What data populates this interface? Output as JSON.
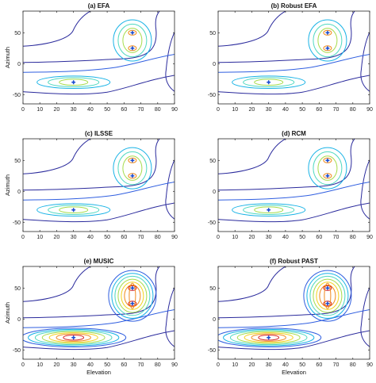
{
  "chart_data": [
    {
      "type": "contour",
      "title": "(a) EFA",
      "xlabel": "",
      "ylabel": "Azimuth",
      "xlim": [
        0,
        90
      ],
      "ylim": [
        -90,
        90
      ],
      "xticks": [
        0,
        10,
        20,
        30,
        40,
        50,
        60,
        70,
        80,
        90
      ],
      "yticks": [
        -50,
        0,
        50
      ],
      "peaks": [
        {
          "elevation": 30,
          "azimuth": -30
        },
        {
          "elevation": 65,
          "azimuth": 50
        },
        {
          "elevation": 65,
          "azimuth": 25
        }
      ],
      "contour_levels": 4
    },
    {
      "type": "contour",
      "title": "(b) Robust EFA",
      "xlabel": "",
      "ylabel": "",
      "xlim": [
        0,
        90
      ],
      "ylim": [
        -90,
        90
      ],
      "xticks": [
        0,
        10,
        20,
        30,
        40,
        50,
        60,
        70,
        80,
        90
      ],
      "yticks": [
        -50,
        0,
        50
      ],
      "peaks": [
        {
          "elevation": 30,
          "azimuth": -30
        },
        {
          "elevation": 65,
          "azimuth": 50
        },
        {
          "elevation": 65,
          "azimuth": 25
        }
      ],
      "contour_levels": 4
    },
    {
      "type": "contour",
      "title": "(c) ILSSE",
      "xlabel": "",
      "ylabel": "Azimuth",
      "xlim": [
        0,
        90
      ],
      "ylim": [
        -90,
        90
      ],
      "xticks": [
        0,
        10,
        20,
        30,
        40,
        50,
        60,
        70,
        80,
        90
      ],
      "yticks": [
        -50,
        0,
        50
      ],
      "peaks": [
        {
          "elevation": 30,
          "azimuth": -30
        },
        {
          "elevation": 65,
          "azimuth": 50
        },
        {
          "elevation": 65,
          "azimuth": 25
        }
      ],
      "contour_levels": 4
    },
    {
      "type": "contour",
      "title": "(d) RCM",
      "xlabel": "",
      "ylabel": "",
      "xlim": [
        0,
        90
      ],
      "ylim": [
        -90,
        90
      ],
      "xticks": [
        0,
        10,
        20,
        30,
        40,
        50,
        60,
        70,
        80,
        90
      ],
      "yticks": [
        -50,
        0,
        50
      ],
      "peaks": [
        {
          "elevation": 30,
          "azimuth": -30
        },
        {
          "elevation": 65,
          "azimuth": 50
        },
        {
          "elevation": 65,
          "azimuth": 25
        }
      ],
      "contour_levels": 4
    },
    {
      "type": "contour",
      "title": "(e) MUSIC",
      "xlabel": "Elevation",
      "ylabel": "Azimuth",
      "xlim": [
        0,
        90
      ],
      "ylim": [
        -90,
        90
      ],
      "xticks": [
        0,
        10,
        20,
        30,
        40,
        50,
        60,
        70,
        80,
        90
      ],
      "yticks": [
        -50,
        0,
        50
      ],
      "peaks": [
        {
          "elevation": 30,
          "azimuth": -30
        },
        {
          "elevation": 65,
          "azimuth": 50
        },
        {
          "elevation": 65,
          "azimuth": 25
        }
      ],
      "contour_levels": 8
    },
    {
      "type": "contour",
      "title": "(f) Robust PAST",
      "xlabel": "Elevation",
      "ylabel": "",
      "xlim": [
        0,
        90
      ],
      "ylim": [
        -90,
        90
      ],
      "xticks": [
        0,
        10,
        20,
        30,
        40,
        50,
        60,
        70,
        80,
        90
      ],
      "yticks": [
        -50,
        0,
        50
      ],
      "peaks": [
        {
          "elevation": 30,
          "azimuth": -30
        },
        {
          "elevation": 65,
          "azimuth": 50
        },
        {
          "elevation": 65,
          "azimuth": 25
        }
      ],
      "contour_levels": 8
    }
  ],
  "colors": {
    "contour_scale": [
      "#2a2a9c",
      "#2f5ee0",
      "#19b3e6",
      "#4fd8c0",
      "#a6dc4c",
      "#f2d21e",
      "#f08a1c",
      "#d62020"
    ],
    "marker": "#1f4fd1",
    "axis": "#262626"
  }
}
